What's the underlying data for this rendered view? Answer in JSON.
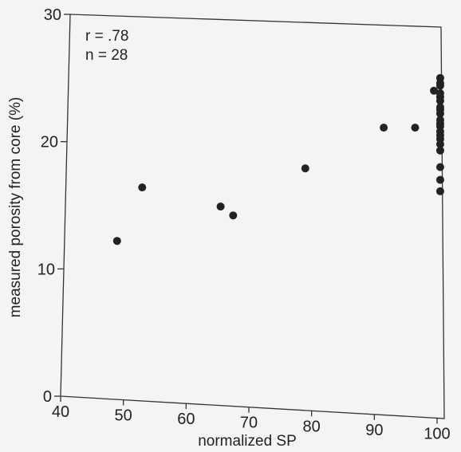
{
  "chart_data": {
    "type": "scatter",
    "title": "",
    "xlabel": "normalized SP",
    "ylabel": "measured porosity from core (%)",
    "xlim": [
      40,
      100
    ],
    "ylim": [
      0,
      30
    ],
    "xticks": [
      "40",
      "50",
      "60",
      "70",
      "80",
      "90",
      "100"
    ],
    "yticks": [
      "0",
      "10",
      "20",
      "30"
    ],
    "grid": false,
    "annotations": [
      "r = .78",
      "n = 28"
    ],
    "series": [
      {
        "x": [
          49,
          53,
          65.5,
          67.5,
          79,
          91.5,
          96.5,
          99.5,
          100.5,
          100.5,
          100.5,
          100.5,
          100.5,
          100.5,
          100.5,
          100.5,
          100.5,
          100.5,
          100.5,
          100.5,
          100.5,
          100.5,
          100.5,
          100.5,
          100.5,
          100.5,
          100.5,
          100.5
        ],
        "y": [
          12.2,
          16.4,
          14.9,
          14.2,
          17.9,
          21.1,
          21.1,
          24.0,
          25.0,
          24.4,
          23.8,
          23.2,
          22.7,
          22.2,
          21.7,
          21.2,
          20.8,
          20.2,
          19.8,
          19.3,
          18.0,
          17.0,
          16.1,
          24.6,
          23.5,
          22.5,
          21.4,
          20.5
        ]
      }
    ]
  }
}
